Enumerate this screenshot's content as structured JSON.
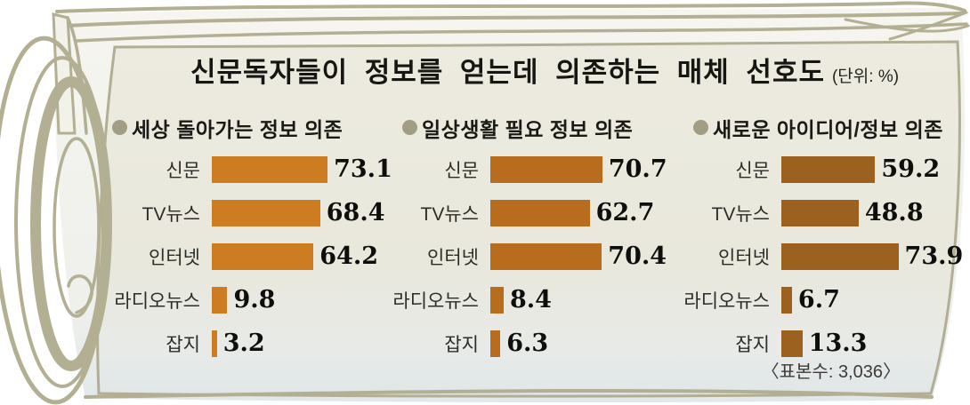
{
  "title": {
    "text": "신문독자들이 정보를 얻는데 의존하는 매체 선호도",
    "unit": "(단위: %)"
  },
  "footnote": "〈표본수: 3,036〉",
  "colors": {
    "panel_background": "#ebe9dd",
    "sketch_outline": "#b3af92",
    "header_bullet": "#a19e84",
    "series1_bar": "#ce7c22",
    "series2_bar": "#b76c1e",
    "series3_bar": "#9c611e"
  },
  "chart_data": {
    "type": "bar",
    "orientation": "horizontal",
    "unit": "%",
    "title": "신문독자들이 정보를 얻는데 의존하는 매체 선호도 (단위: %)",
    "categories": [
      "신문",
      "TV뉴스",
      "인터넷",
      "라디오뉴스",
      "잡지"
    ],
    "series": [
      {
        "name": "세상 돌아가는 정보 의존",
        "color": "#ce7c22",
        "values": [
          73.1,
          68.4,
          64.2,
          9.8,
          3.2
        ]
      },
      {
        "name": "일상생활 필요 정보 의존",
        "color": "#b76c1e",
        "values": [
          70.7,
          62.7,
          70.4,
          8.4,
          6.3
        ]
      },
      {
        "name": "새로운 아이디어/정보 의존",
        "color": "#9c611e",
        "values": [
          59.2,
          48.8,
          73.9,
          6.7,
          13.3
        ]
      }
    ],
    "xlim": [
      0,
      80
    ],
    "grid": false,
    "legend_position": "column-headers",
    "sample_note": "〈표본수: 3,036〉"
  }
}
